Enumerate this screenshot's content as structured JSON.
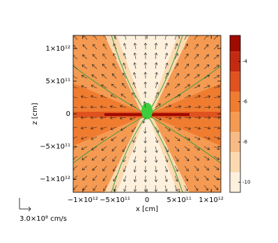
{
  "chart_data": {
    "type": "heatmap",
    "xlabel": "x [cm]",
    "ylabel": "z [cm]",
    "xlim": [
      -1150000000000.0,
      1150000000000.0
    ],
    "ylim": [
      -1200000000000.0,
      1200000000000.0
    ],
    "xticks": [
      {
        "value": -1000000000000.0,
        "label": "−1×10¹²"
      },
      {
        "value": -500000000000.0,
        "label": "−5×10¹¹"
      },
      0,
      {
        "value": 500000000000.0,
        "label": "5×10¹¹"
      },
      {
        "value": 1000000000000.0,
        "label": "1×10¹²"
      }
    ],
    "yticks": [
      {
        "value": -1000000000000.0,
        "label": "−1×10¹²"
      },
      {
        "value": -500000000000.0,
        "label": "−5×10¹¹"
      },
      0,
      {
        "value": 500000000000.0,
        "label": "5×10¹¹"
      },
      {
        "value": 1000000000000.0,
        "label": "1×10¹²"
      }
    ],
    "colorbar": {
      "lim": [
        -10.5,
        -2.7
      ],
      "ticks": [
        -10,
        -8,
        -6,
        -4
      ],
      "levels": [
        -10.5,
        -9.5,
        -8.5,
        -7.5,
        -6.5,
        -5.5,
        -4.5,
        -3.5,
        -2.7
      ],
      "colors": [
        "#fdf1de",
        "#fbd9b0",
        "#f8bb84",
        "#f59a52",
        "#f07c30",
        "#e0531f",
        "#c42a10",
        "#a00b00"
      ]
    },
    "vector_legend": "3.0×10⁸ cm/s"
  }
}
